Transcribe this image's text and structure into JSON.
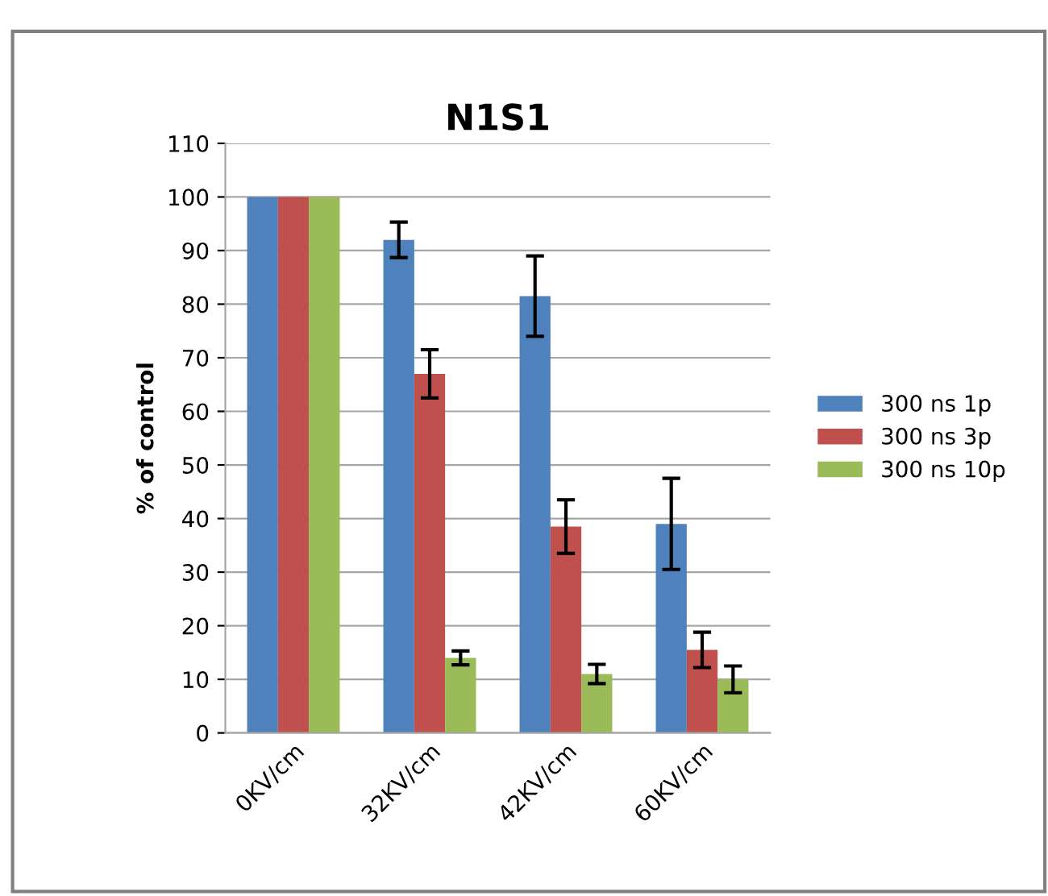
{
  "chart_data": {
    "type": "bar",
    "title": "N1S1",
    "ylabel": "% of control",
    "categories": [
      "0KV/cm",
      "32KV/cm",
      "42KV/cm",
      "60KV/cm"
    ],
    "series": [
      {
        "name": "300 ns 1p",
        "color": "#4f81bd",
        "values": [
          100,
          92,
          81.5,
          39
        ],
        "errors": [
          null,
          3.3,
          7.5,
          8.5
        ]
      },
      {
        "name": "300 ns 3p",
        "color": "#c0504d",
        "values": [
          100,
          67,
          38.5,
          15.5
        ],
        "errors": [
          null,
          4.5,
          5,
          3.3
        ]
      },
      {
        "name": "300 ns 10p",
        "color": "#9bbb59",
        "values": [
          100,
          14,
          11,
          10
        ],
        "errors": [
          null,
          1.3,
          1.8,
          2.5
        ]
      }
    ],
    "ylim": [
      0,
      110
    ],
    "yticks": [
      0,
      10,
      20,
      30,
      40,
      50,
      60,
      70,
      80,
      90,
      100,
      110
    ],
    "grid": "y",
    "legend": "right"
  }
}
